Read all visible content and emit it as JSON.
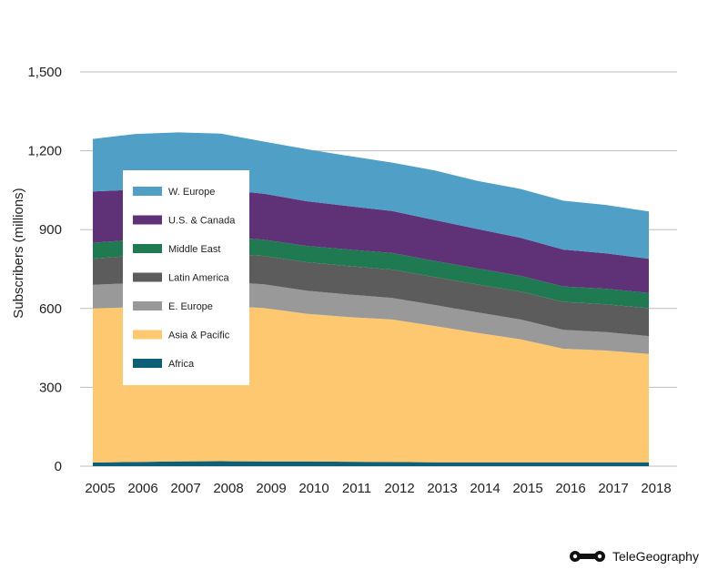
{
  "chart_data": {
    "type": "area",
    "stacked": true,
    "x": [
      2005,
      2006,
      2007,
      2008,
      2009,
      2010,
      2011,
      2012,
      2013,
      2014,
      2015,
      2016,
      2017,
      2018
    ],
    "ylabel": "Subscribers (millions)",
    "ylim": [
      0,
      1500
    ],
    "yticks": [
      0,
      300,
      600,
      900,
      1200,
      1500
    ],
    "ytick_labels": [
      "0",
      "300",
      "600",
      "900",
      "1,200",
      "1,500"
    ],
    "grid": true,
    "legend_position": "upper-left inside",
    "series": [
      {
        "name": "Africa",
        "color": "#0d5f78",
        "values": [
          14,
          16,
          18,
          19,
          18,
          18,
          17,
          16,
          15,
          15,
          15,
          15,
          15,
          15
        ]
      },
      {
        "name": "Asia & Pacific",
        "color": "#fdc86f",
        "values": [
          586,
          589,
          592,
          591,
          584,
          562,
          550,
          542,
          518,
          492,
          468,
          432,
          425,
          412
        ]
      },
      {
        "name": "E. Europe",
        "color": "#999999",
        "values": [
          90,
          92,
          94,
          92,
          90,
          88,
          86,
          82,
          80,
          78,
          75,
          72,
          70,
          68
        ]
      },
      {
        "name": "Latin America",
        "color": "#5c5c5c",
        "values": [
          100,
          104,
          107,
          108,
          108,
          108,
          108,
          108,
          106,
          106,
          106,
          106,
          106,
          106
        ]
      },
      {
        "name": "Middle East",
        "color": "#1f7a52",
        "values": [
          60,
          61,
          62,
          63,
          62,
          62,
          63,
          63,
          62,
          61,
          60,
          59,
          59,
          58
        ]
      },
      {
        "name": "U.S. & Canada",
        "color": "#5f3277",
        "values": [
          195,
          190,
          185,
          180,
          175,
          170,
          165,
          160,
          155,
          150,
          145,
          140,
          135,
          130
        ]
      },
      {
        "name": "W. Europe",
        "color": "#4f9fc7",
        "values": [
          200,
          212,
          212,
          212,
          198,
          198,
          191,
          184,
          189,
          183,
          186,
          186,
          184,
          180
        ]
      }
    ],
    "legend_order": [
      "W. Europe",
      "U.S. & Canada",
      "Middle East",
      "Latin America",
      "E. Europe",
      "Asia & Pacific",
      "Africa"
    ]
  },
  "brand": {
    "name": "TeleGeography",
    "logo_icon": "telegeography-logo-icon"
  }
}
